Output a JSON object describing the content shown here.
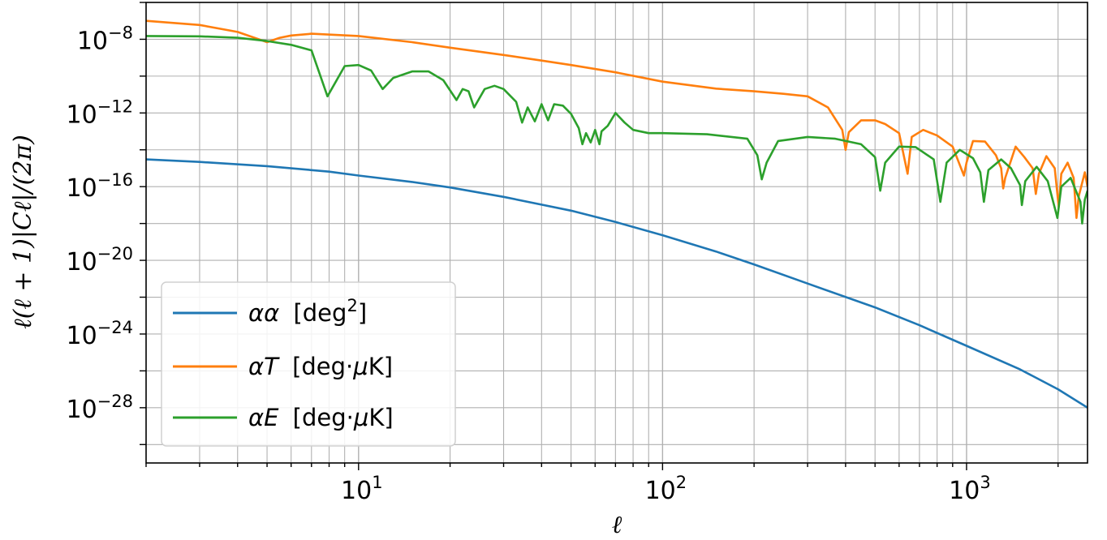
{
  "chart_data": {
    "type": "line",
    "xscale": "log",
    "yscale": "log",
    "xlim": [
      2,
      2500
    ],
    "ylim": [
      1e-31,
      1e-06
    ],
    "grid": "major and minor",
    "legend_position": "lower-left",
    "xlabel": "ℓ",
    "ylabel": "ℓ(ℓ + 1)|Cℓ|/(2π)",
    "x_tick_labels": [
      {
        "value": 10,
        "base": "10",
        "exp": "1"
      },
      {
        "value": 100,
        "base": "10",
        "exp": "2"
      },
      {
        "value": 1000,
        "base": "10",
        "exp": "3"
      }
    ],
    "y_tick_labels": [
      {
        "value": 1e-08,
        "base": "10",
        "exp": "−8"
      },
      {
        "value": 1e-12,
        "base": "10",
        "exp": "−12"
      },
      {
        "value": 1e-16,
        "base": "10",
        "exp": "−16"
      },
      {
        "value": 1e-20,
        "base": "10",
        "exp": "−20"
      },
      {
        "value": 1e-24,
        "base": "10",
        "exp": "−24"
      },
      {
        "value": 1e-28,
        "base": "10",
        "exp": "−28"
      }
    ],
    "series": [
      {
        "name": "αα [deg²]",
        "legend": {
          "symbol": "αα",
          "unit_pre": "[deg",
          "unit_sup": "2",
          "unit_post": "]"
        },
        "color": "#1f77b4",
        "points": [
          [
            2,
            3e-15
          ],
          [
            3,
            2.2e-15
          ],
          [
            5,
            1.3e-15
          ],
          [
            8,
            6.5e-16
          ],
          [
            10,
            4e-16
          ],
          [
            15,
            1.8e-16
          ],
          [
            20,
            9e-17
          ],
          [
            30,
            2.8e-17
          ],
          [
            50,
            5e-18
          ],
          [
            70,
            1.2e-18
          ],
          [
            100,
            2.3e-19
          ],
          [
            150,
            3e-20
          ],
          [
            200,
            6e-21
          ],
          [
            300,
            5.5e-22
          ],
          [
            500,
            2.8e-23
          ],
          [
            700,
            3e-24
          ],
          [
            1000,
            2.3e-25
          ],
          [
            1500,
            1.2e-26
          ],
          [
            2000,
            1e-27
          ],
          [
            2500,
            1e-28
          ]
        ]
      },
      {
        "name": "αT [deg·μK]",
        "legend": {
          "symbol": "αT",
          "unit_pre": "[deg·",
          "unit_mu": "μ",
          "unit_post": "K]"
        },
        "color": "#ff7f0e",
        "points": [
          [
            2,
            1e-07
          ],
          [
            3,
            6e-08
          ],
          [
            4,
            2.5e-08
          ],
          [
            5,
            7e-09
          ],
          [
            5.5,
            1.2e-08
          ],
          [
            6,
            1.6e-08
          ],
          [
            7,
            2e-08
          ],
          [
            10,
            1.5e-08
          ],
          [
            15,
            7e-09
          ],
          [
            20,
            3.5e-09
          ],
          [
            30,
            1.4e-09
          ],
          [
            40,
            7e-10
          ],
          [
            50,
            4e-10
          ],
          [
            70,
            1.6e-10
          ],
          [
            100,
            5e-11
          ],
          [
            150,
            2.1e-11
          ],
          [
            200,
            1.5e-11
          ],
          [
            250,
            1.1e-11
          ],
          [
            300,
            8e-12
          ],
          [
            350,
            2e-12
          ],
          [
            390,
            1.2e-13
          ],
          [
            400,
            1e-14
          ],
          [
            410,
            9e-14
          ],
          [
            450,
            4e-13
          ],
          [
            500,
            4e-13
          ],
          [
            540,
            2.5e-13
          ],
          [
            600,
            8e-14
          ],
          [
            640,
            5e-16
          ],
          [
            660,
            5e-14
          ],
          [
            720,
            1.2e-13
          ],
          [
            800,
            6e-14
          ],
          [
            900,
            1.5e-14
          ],
          [
            980,
            4e-16
          ],
          [
            1000,
            2e-15
          ],
          [
            1050,
            3e-14
          ],
          [
            1150,
            2.8e-14
          ],
          [
            1250,
            5e-15
          ],
          [
            1300,
            1e-15
          ],
          [
            1320,
            8e-17
          ],
          [
            1340,
            3e-16
          ],
          [
            1450,
            1.5e-14
          ],
          [
            1550,
            4e-15
          ],
          [
            1650,
            1e-15
          ],
          [
            1690,
            4e-17
          ],
          [
            1730,
            5e-16
          ],
          [
            1830,
            4.5e-15
          ],
          [
            1950,
            1e-15
          ],
          [
            2010,
            8e-18
          ],
          [
            2050,
            5e-16
          ],
          [
            2150,
            2e-15
          ],
          [
            2250,
            3e-16
          ],
          [
            2300,
            2e-18
          ],
          [
            2340,
            3e-17
          ],
          [
            2450,
            6e-16
          ],
          [
            2500,
            1e-16
          ]
        ]
      },
      {
        "name": "αE [deg·μK]",
        "legend": {
          "symbol": "αE",
          "unit_pre": "[deg·",
          "unit_mu": "μ",
          "unit_post": "K]"
        },
        "color": "#2ca02c",
        "points": [
          [
            2,
            1.5e-08
          ],
          [
            3,
            1.45e-08
          ],
          [
            4,
            1.2e-08
          ],
          [
            5,
            8e-09
          ],
          [
            6,
            5e-09
          ],
          [
            7,
            2.5e-09
          ],
          [
            7.9,
            8e-12
          ],
          [
            9,
            3.5e-10
          ],
          [
            10,
            4e-10
          ],
          [
            11,
            2e-10
          ],
          [
            12,
            2e-11
          ],
          [
            13,
            8e-11
          ],
          [
            15,
            1.8e-10
          ],
          [
            17,
            1.8e-10
          ],
          [
            19,
            6e-11
          ],
          [
            21,
            5e-12
          ],
          [
            22,
            2e-11
          ],
          [
            23,
            1.5e-11
          ],
          [
            24,
            2e-12
          ],
          [
            26,
            2e-11
          ],
          [
            28,
            3e-11
          ],
          [
            30,
            2e-11
          ],
          [
            33,
            4e-12
          ],
          [
            34.5,
            3e-13
          ],
          [
            36,
            2e-12
          ],
          [
            38,
            3.5e-13
          ],
          [
            40,
            3e-12
          ],
          [
            42,
            4e-13
          ],
          [
            44,
            3e-12
          ],
          [
            47,
            2.5e-12
          ],
          [
            50,
            9e-13
          ],
          [
            53,
            1.5e-13
          ],
          [
            54.5,
            2e-14
          ],
          [
            56,
            8e-14
          ],
          [
            58,
            2.5e-14
          ],
          [
            60,
            1.2e-13
          ],
          [
            62,
            2e-14
          ],
          [
            63,
            1e-13
          ],
          [
            66,
            2e-13
          ],
          [
            70,
            1e-12
          ],
          [
            75,
            3e-13
          ],
          [
            80,
            1.2e-13
          ],
          [
            90,
            8e-14
          ],
          [
            100,
            8e-14
          ],
          [
            140,
            7e-14
          ],
          [
            190,
            4e-14
          ],
          [
            205,
            5e-15
          ],
          [
            212,
            2.5e-16
          ],
          [
            220,
            2e-15
          ],
          [
            240,
            3e-14
          ],
          [
            300,
            5e-14
          ],
          [
            370,
            4e-14
          ],
          [
            450,
            2e-14
          ],
          [
            500,
            4e-15
          ],
          [
            520,
            6e-17
          ],
          [
            540,
            2e-15
          ],
          [
            600,
            1.5e-14
          ],
          [
            680,
            1.4e-14
          ],
          [
            780,
            3e-15
          ],
          [
            820,
            1.5e-17
          ],
          [
            860,
            2e-15
          ],
          [
            950,
            1e-14
          ],
          [
            1050,
            3.5e-15
          ],
          [
            1110,
            6e-16
          ],
          [
            1140,
            1.5e-17
          ],
          [
            1180,
            8e-16
          ],
          [
            1300,
            3e-15
          ],
          [
            1400,
            1e-15
          ],
          [
            1500,
            1.2e-16
          ],
          [
            1520,
            1e-17
          ],
          [
            1560,
            2e-16
          ],
          [
            1700,
            1.2e-15
          ],
          [
            1850,
            2e-16
          ],
          [
            1990,
            2e-18
          ],
          [
            2050,
            1e-16
          ],
          [
            2200,
            3e-16
          ],
          [
            2370,
            1.5e-17
          ],
          [
            2400,
            1e-18
          ],
          [
            2450,
            2e-17
          ],
          [
            2500,
            6e-17
          ]
        ]
      }
    ]
  }
}
